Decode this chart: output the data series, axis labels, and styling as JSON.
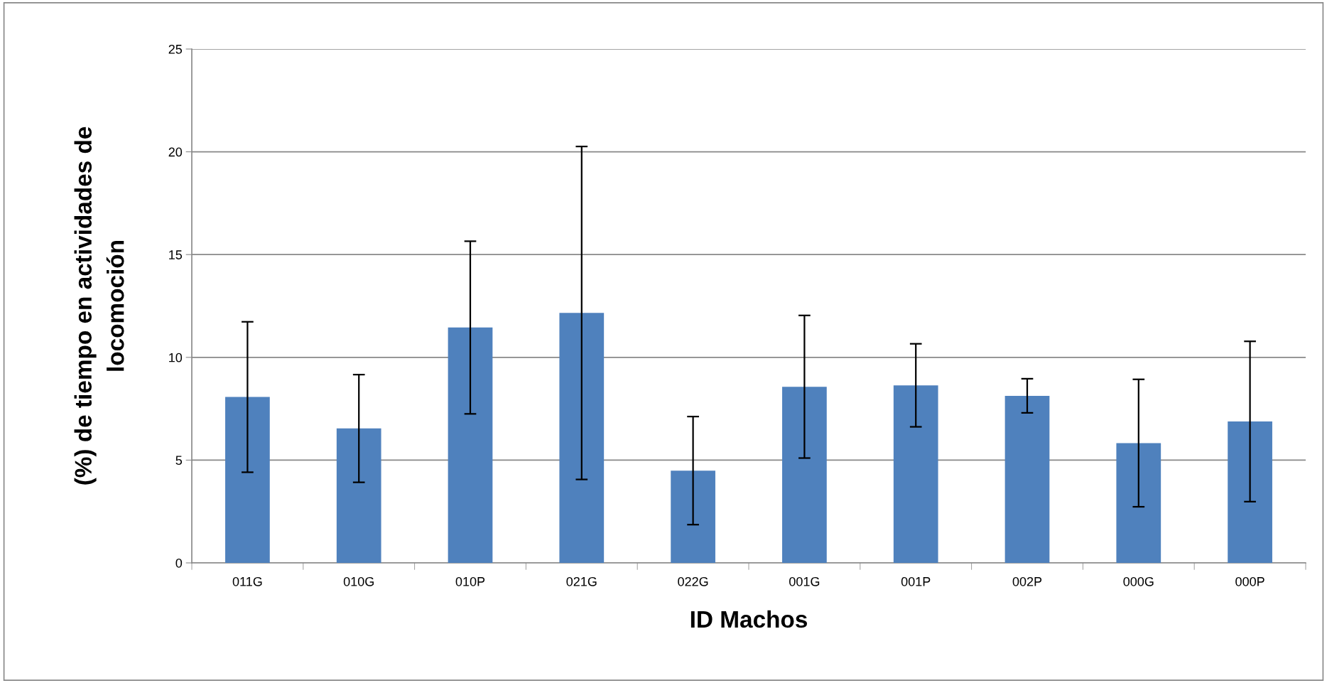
{
  "chart_data": {
    "type": "bar",
    "xlabel": "ID Machos",
    "ylabel": "(%) de tiempo en actividades de\nlocomoción",
    "categories": [
      "011G",
      "010G",
      "010P",
      "021G",
      "022G",
      "001G",
      "001P",
      "002P",
      "000G",
      "000P"
    ],
    "values": [
      8.07,
      6.54,
      11.45,
      12.16,
      4.49,
      8.57,
      8.64,
      8.13,
      5.83,
      6.88
    ],
    "errors": [
      3.66,
      2.62,
      4.2,
      8.1,
      2.63,
      3.47,
      2.02,
      0.83,
      3.1,
      3.9
    ],
    "color": "#4f81bd",
    "ylim": [
      0,
      25
    ],
    "yticks": [
      0,
      5,
      10,
      15,
      20,
      25
    ],
    "grid": "y",
    "legend": false
  }
}
